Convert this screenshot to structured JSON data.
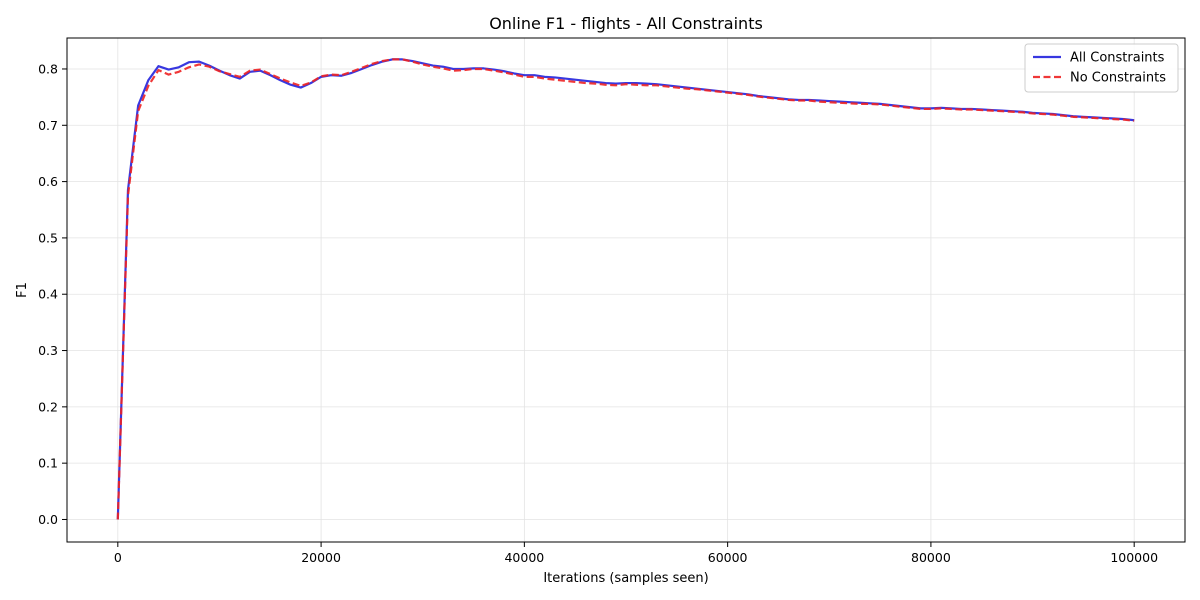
{
  "chart_data": {
    "type": "line",
    "title": "Online F1 - flights - All Constraints",
    "xlabel": "Iterations (samples seen)",
    "ylabel": "F1",
    "xlim": [
      -5000,
      105000
    ],
    "ylim": [
      -0.04,
      0.855
    ],
    "xticks": [
      0,
      20000,
      40000,
      60000,
      80000,
      100000
    ],
    "yticks": [
      0.0,
      0.1,
      0.2,
      0.3,
      0.4,
      0.5,
      0.6,
      0.7,
      0.8
    ],
    "grid": true,
    "legend_position": "top-right",
    "series": [
      {
        "name": "All Constraints",
        "color": "#2222dd",
        "style": "solid",
        "x": [
          0,
          1000,
          2000,
          3000,
          4000,
          5000,
          6000,
          7000,
          8000,
          9000,
          10000,
          11000,
          12000,
          13000,
          14000,
          15000,
          16000,
          17000,
          18000,
          19000,
          20000,
          21000,
          22000,
          23000,
          24000,
          25000,
          26000,
          27000,
          28000,
          29000,
          30000,
          31000,
          32000,
          33000,
          34000,
          35000,
          36000,
          37000,
          38000,
          39000,
          40000,
          41000,
          42000,
          43000,
          44000,
          45000,
          46000,
          47000,
          48000,
          49000,
          50000,
          51000,
          52000,
          53000,
          54000,
          55000,
          56000,
          57000,
          58000,
          59000,
          60000,
          61000,
          62000,
          63000,
          64000,
          65000,
          66000,
          67000,
          68000,
          69000,
          70000,
          71000,
          72000,
          73000,
          74000,
          75000,
          76000,
          77000,
          78000,
          79000,
          80000,
          81000,
          82000,
          83000,
          84000,
          85000,
          86000,
          87000,
          88000,
          89000,
          90000,
          91000,
          92000,
          93000,
          94000,
          95000,
          96000,
          97000,
          98000,
          99000,
          100000
        ],
        "values": [
          0.0,
          0.585,
          0.735,
          0.78,
          0.805,
          0.799,
          0.803,
          0.812,
          0.813,
          0.806,
          0.797,
          0.789,
          0.783,
          0.795,
          0.797,
          0.789,
          0.78,
          0.772,
          0.767,
          0.775,
          0.786,
          0.789,
          0.788,
          0.793,
          0.8,
          0.807,
          0.813,
          0.817,
          0.817,
          0.814,
          0.81,
          0.806,
          0.804,
          0.8,
          0.8,
          0.801,
          0.801,
          0.799,
          0.796,
          0.792,
          0.789,
          0.789,
          0.786,
          0.785,
          0.783,
          0.781,
          0.779,
          0.777,
          0.775,
          0.774,
          0.775,
          0.775,
          0.774,
          0.773,
          0.771,
          0.769,
          0.767,
          0.765,
          0.763,
          0.761,
          0.759,
          0.757,
          0.755,
          0.752,
          0.75,
          0.748,
          0.746,
          0.745,
          0.745,
          0.744,
          0.743,
          0.742,
          0.741,
          0.74,
          0.739,
          0.738,
          0.736,
          0.734,
          0.732,
          0.73,
          0.73,
          0.731,
          0.73,
          0.729,
          0.729,
          0.728,
          0.727,
          0.726,
          0.725,
          0.724,
          0.722,
          0.721,
          0.72,
          0.718,
          0.716,
          0.715,
          0.714,
          0.713,
          0.712,
          0.711,
          0.709
        ]
      },
      {
        "name": "No Constraints",
        "color": "#ee2222",
        "style": "dashed",
        "x": [
          0,
          1000,
          2000,
          3000,
          4000,
          5000,
          6000,
          7000,
          8000,
          9000,
          10000,
          11000,
          12000,
          13000,
          14000,
          15000,
          16000,
          17000,
          18000,
          19000,
          20000,
          21000,
          22000,
          23000,
          24000,
          25000,
          26000,
          27000,
          28000,
          29000,
          30000,
          31000,
          32000,
          33000,
          34000,
          35000,
          36000,
          37000,
          38000,
          39000,
          40000,
          41000,
          42000,
          43000,
          44000,
          45000,
          46000,
          47000,
          48000,
          49000,
          50000,
          51000,
          52000,
          53000,
          54000,
          55000,
          56000,
          57000,
          58000,
          59000,
          60000,
          61000,
          62000,
          63000,
          64000,
          65000,
          66000,
          67000,
          68000,
          69000,
          70000,
          71000,
          72000,
          73000,
          74000,
          75000,
          76000,
          77000,
          78000,
          79000,
          80000,
          81000,
          82000,
          83000,
          84000,
          85000,
          86000,
          87000,
          88000,
          89000,
          90000,
          91000,
          92000,
          93000,
          94000,
          95000,
          96000,
          97000,
          98000,
          99000,
          100000
        ],
        "values": [
          0.0,
          0.575,
          0.725,
          0.77,
          0.798,
          0.79,
          0.795,
          0.803,
          0.808,
          0.804,
          0.796,
          0.791,
          0.786,
          0.797,
          0.799,
          0.791,
          0.783,
          0.776,
          0.77,
          0.776,
          0.787,
          0.79,
          0.789,
          0.795,
          0.802,
          0.809,
          0.814,
          0.817,
          0.817,
          0.813,
          0.808,
          0.804,
          0.801,
          0.797,
          0.798,
          0.8,
          0.8,
          0.797,
          0.794,
          0.79,
          0.786,
          0.786,
          0.783,
          0.781,
          0.779,
          0.777,
          0.775,
          0.774,
          0.772,
          0.771,
          0.773,
          0.772,
          0.771,
          0.771,
          0.769,
          0.767,
          0.765,
          0.764,
          0.762,
          0.76,
          0.758,
          0.756,
          0.754,
          0.751,
          0.749,
          0.747,
          0.745,
          0.744,
          0.744,
          0.742,
          0.741,
          0.74,
          0.739,
          0.738,
          0.738,
          0.737,
          0.735,
          0.733,
          0.731,
          0.729,
          0.729,
          0.73,
          0.729,
          0.728,
          0.728,
          0.727,
          0.726,
          0.725,
          0.724,
          0.723,
          0.721,
          0.72,
          0.719,
          0.717,
          0.715,
          0.714,
          0.713,
          0.712,
          0.711,
          0.71,
          0.708
        ]
      }
    ]
  }
}
